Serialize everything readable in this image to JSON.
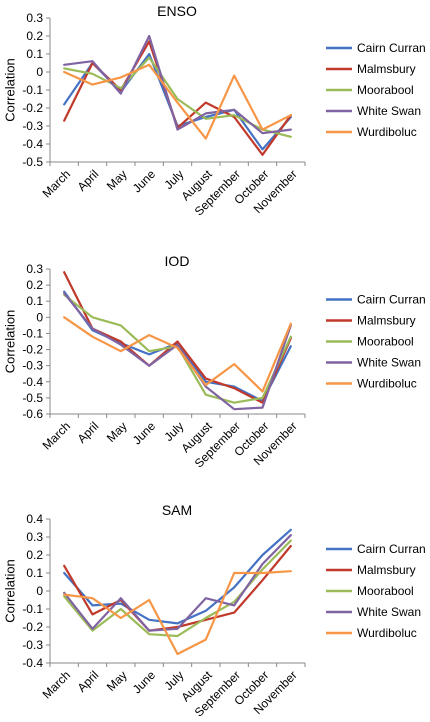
{
  "chart_data": [
    {
      "type": "line",
      "title": "ENSO",
      "ylabel": "Correlation",
      "xlabel": "",
      "ylim": [
        -0.5,
        0.3
      ],
      "yticks": [
        0.3,
        0.2,
        0.1,
        0,
        -0.1,
        -0.2,
        -0.3,
        -0.4,
        -0.5
      ],
      "categories": [
        "March",
        "April",
        "May",
        "June",
        "July",
        "August",
        "September",
        "October",
        "November"
      ],
      "legend_position": "right",
      "series": [
        {
          "name": "Cairn Curran",
          "color": "#4472C4",
          "values": [
            -0.18,
            0.05,
            -0.11,
            0.1,
            -0.3,
            -0.25,
            -0.21,
            -0.43,
            -0.25
          ]
        },
        {
          "name": "Malmsbury",
          "color": "#C0392B",
          "values": [
            -0.27,
            0.05,
            -0.1,
            0.17,
            -0.31,
            -0.17,
            -0.25,
            -0.46,
            -0.24
          ]
        },
        {
          "name": "Moorabool",
          "color": "#9BBB59",
          "values": [
            0.02,
            -0.01,
            -0.09,
            0.08,
            -0.15,
            -0.26,
            -0.24,
            -0.32,
            -0.36
          ]
        },
        {
          "name": "White Swan",
          "color": "#8064A2",
          "values": [
            0.04,
            0.06,
            -0.12,
            0.2,
            -0.32,
            -0.23,
            -0.21,
            -0.34,
            -0.32
          ]
        },
        {
          "name": "Wurdiboluc",
          "color": "#F79646",
          "values": [
            0.0,
            -0.07,
            -0.03,
            0.04,
            -0.17,
            -0.37,
            -0.02,
            -0.32,
            -0.24
          ]
        }
      ]
    },
    {
      "type": "line",
      "title": "IOD",
      "ylabel": "Correlation",
      "xlabel": "",
      "ylim": [
        -0.6,
        0.3
      ],
      "yticks": [
        0.3,
        0.2,
        0.1,
        0,
        -0.1,
        -0.2,
        -0.3,
        -0.4,
        -0.5,
        -0.6
      ],
      "categories": [
        "March",
        "April",
        "May",
        "June",
        "July",
        "August",
        "September",
        "October",
        "November"
      ],
      "legend_position": "right",
      "series": [
        {
          "name": "Cairn Curran",
          "color": "#4472C4",
          "values": [
            0.16,
            -0.08,
            -0.16,
            -0.23,
            -0.16,
            -0.4,
            -0.43,
            -0.52,
            -0.18
          ]
        },
        {
          "name": "Malmsbury",
          "color": "#C0392B",
          "values": [
            0.28,
            -0.07,
            -0.15,
            -0.3,
            -0.15,
            -0.38,
            -0.44,
            -0.53,
            -0.13
          ]
        },
        {
          "name": "Moorabool",
          "color": "#9BBB59",
          "values": [
            0.14,
            0.0,
            -0.05,
            -0.21,
            -0.18,
            -0.48,
            -0.53,
            -0.5,
            -0.12
          ]
        },
        {
          "name": "White Swan",
          "color": "#8064A2",
          "values": [
            0.15,
            -0.07,
            -0.17,
            -0.3,
            -0.17,
            -0.43,
            -0.57,
            -0.56,
            -0.05
          ]
        },
        {
          "name": "Wurdiboluc",
          "color": "#F79646",
          "values": [
            0.0,
            -0.12,
            -0.21,
            -0.11,
            -0.19,
            -0.42,
            -0.29,
            -0.46,
            -0.04
          ]
        }
      ]
    },
    {
      "type": "line",
      "title": "SAM",
      "ylabel": "Correlation",
      "xlabel": "",
      "ylim": [
        -0.4,
        0.4
      ],
      "yticks": [
        0.4,
        0.3,
        0.2,
        0.1,
        0,
        -0.1,
        -0.2,
        -0.3,
        -0.4
      ],
      "categories": [
        "March",
        "April",
        "May",
        "June",
        "July",
        "August",
        "September",
        "October",
        "November"
      ],
      "legend_position": "right",
      "series": [
        {
          "name": "Cairn Curran",
          "color": "#4472C4",
          "values": [
            0.1,
            -0.08,
            -0.07,
            -0.16,
            -0.18,
            -0.11,
            0.02,
            0.2,
            0.34
          ]
        },
        {
          "name": "Malmsbury",
          "color": "#C0392B",
          "values": [
            0.14,
            -0.13,
            -0.05,
            -0.22,
            -0.2,
            -0.16,
            -0.12,
            0.06,
            0.25
          ]
        },
        {
          "name": "Moorabool",
          "color": "#9BBB59",
          "values": [
            -0.03,
            -0.22,
            -0.1,
            -0.24,
            -0.25,
            -0.15,
            -0.06,
            0.12,
            0.28
          ]
        },
        {
          "name": "White Swan",
          "color": "#8064A2",
          "values": [
            -0.01,
            -0.21,
            -0.04,
            -0.22,
            -0.21,
            -0.04,
            -0.08,
            0.15,
            0.31
          ]
        },
        {
          "name": "Wurdiboluc",
          "color": "#F79646",
          "values": [
            -0.02,
            -0.04,
            -0.15,
            -0.05,
            -0.35,
            -0.27,
            0.1,
            0.1,
            0.11
          ]
        }
      ]
    }
  ]
}
